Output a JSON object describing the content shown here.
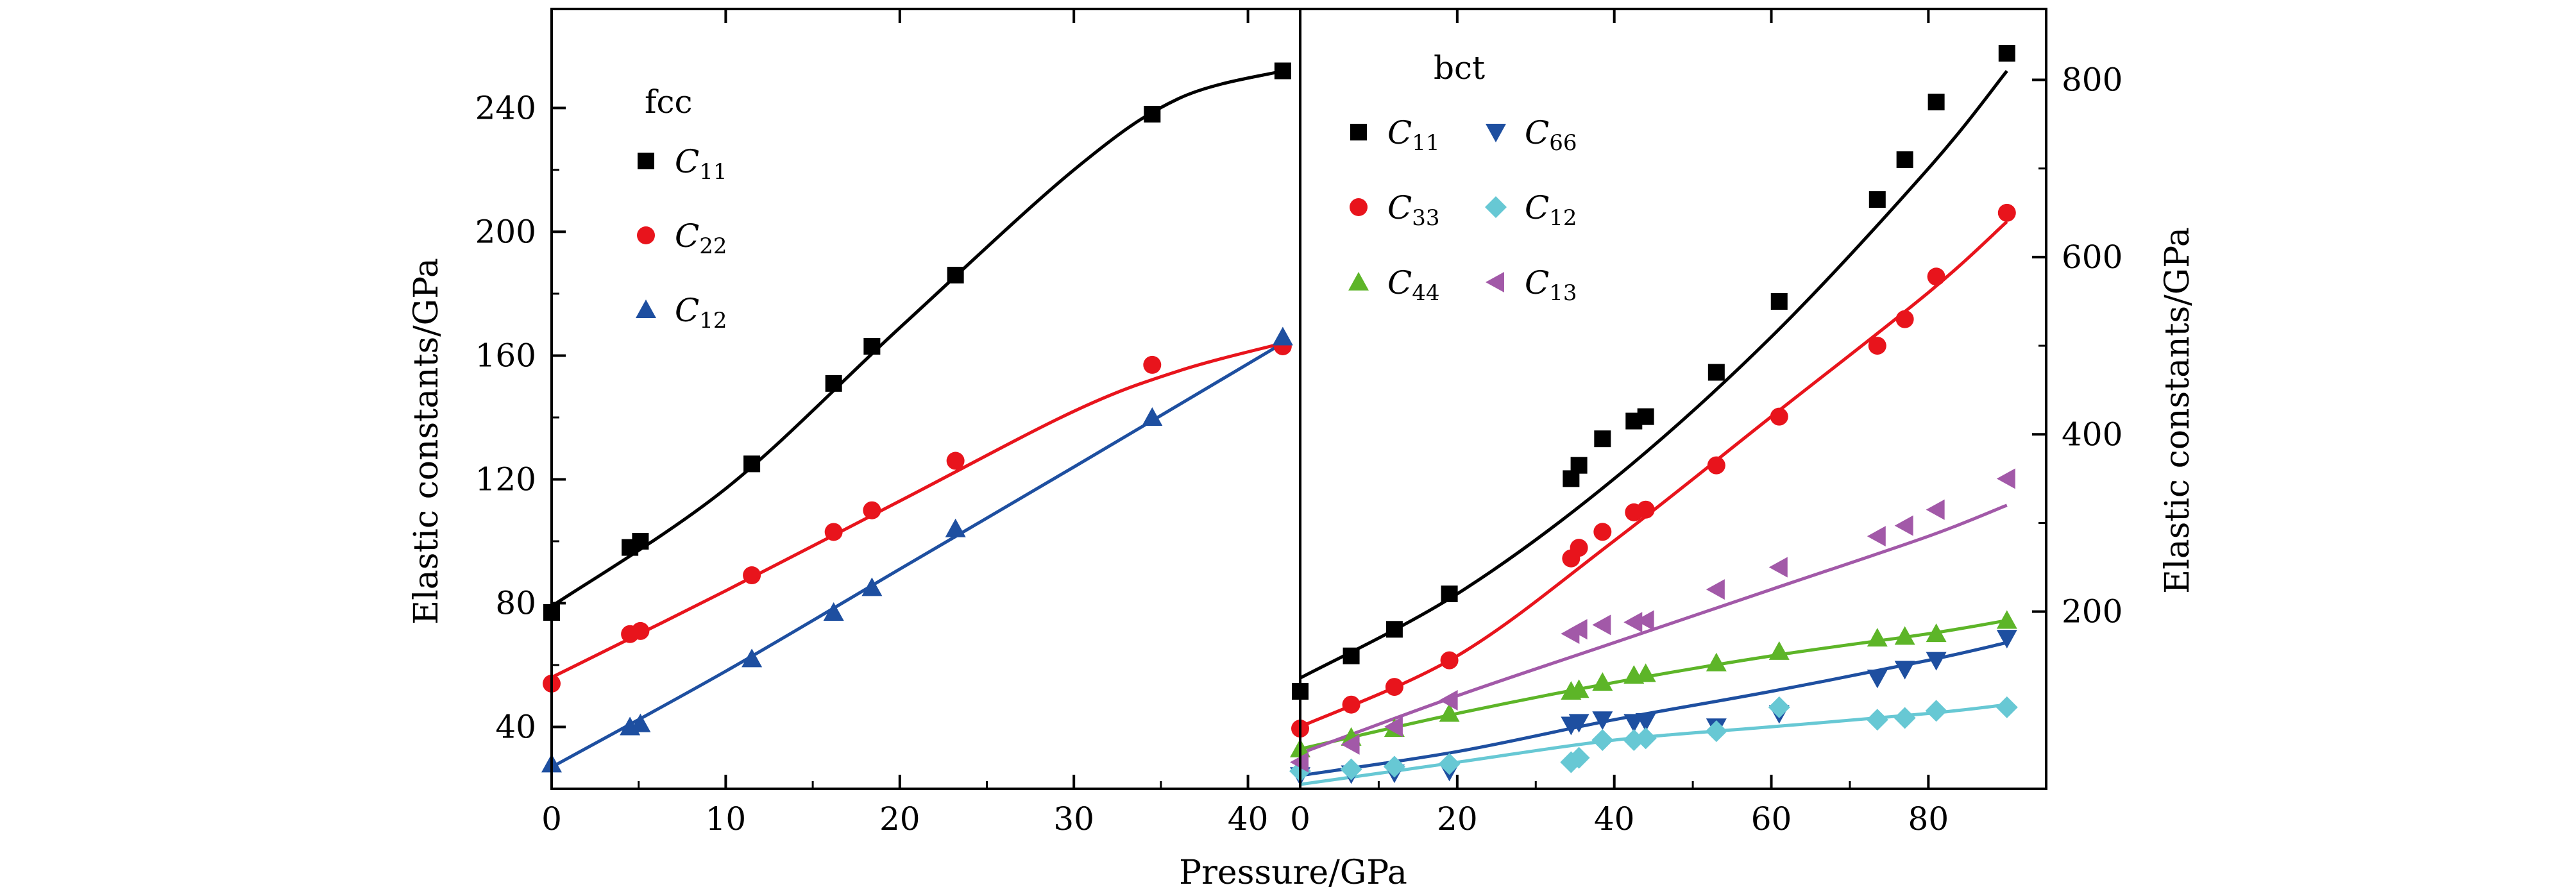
{
  "xlabel": "Pressure/GPa",
  "chart_data": [
    {
      "type": "scatter",
      "title": "fcc",
      "xlabel": "Pressure/GPa",
      "ylabel": "Elastic constants/GPa",
      "xlim": [
        0,
        43
      ],
      "ylim": [
        20,
        272
      ],
      "xticks": [
        0,
        10,
        20,
        30,
        40
      ],
      "yticks": [
        40,
        80,
        120,
        160,
        200,
        240
      ],
      "tick_labels_x": [
        "0",
        "10",
        "20",
        "30",
        "40"
      ],
      "tick_labels_y": [
        "40",
        "80",
        "120",
        "160",
        "200",
        "240"
      ],
      "legend": {
        "title": "fcc",
        "placement": "top-left"
      },
      "series": [
        {
          "name": "C11",
          "label_main": "C",
          "label_sub": "11",
          "marker": "square",
          "color": "#000000",
          "x": [
            0,
            4.5,
            5.1,
            11.5,
            16.2,
            18.4,
            23.2,
            34.5,
            42
          ],
          "y": [
            77,
            98,
            100,
            125,
            151,
            163,
            186,
            238,
            252
          ],
          "fit": [
            [
              0,
              79
            ],
            [
              10,
              117
            ],
            [
              20,
              169
            ],
            [
              30,
              220
            ],
            [
              36,
              243
            ],
            [
              42,
              252
            ]
          ]
        },
        {
          "name": "C22",
          "label_main": "C",
          "label_sub": "22",
          "marker": "circle",
          "color": "#e8141c",
          "x": [
            0,
            4.5,
            5.1,
            11.5,
            16.2,
            18.4,
            23.2,
            34.5,
            42
          ],
          "y": [
            54,
            70,
            71,
            89,
            103,
            110,
            126,
            157,
            163
          ],
          "fit": [
            [
              0,
              56
            ],
            [
              10,
              84
            ],
            [
              20,
              113
            ],
            [
              30,
              142
            ],
            [
              36,
              155
            ],
            [
              42,
              164
            ]
          ]
        },
        {
          "name": "C12",
          "label_main": "C",
          "label_sub": "12",
          "marker": "triangle-up",
          "color": "#1e4fa0",
          "x": [
            0,
            4.5,
            5.1,
            11.5,
            16.2,
            18.4,
            23.2,
            34.5,
            42
          ],
          "y": [
            28,
            40,
            41,
            62,
            77,
            85,
            104,
            140,
            166
          ],
          "fit": [
            [
              0,
              27
            ],
            [
              10,
              58
            ],
            [
              20,
              91
            ],
            [
              30,
              124
            ],
            [
              42,
              164
            ]
          ]
        }
      ]
    },
    {
      "type": "scatter",
      "title": "bct",
      "xlabel": "Pressure/GPa",
      "ylabel": "Elastic constants/GPa",
      "xlim": [
        0,
        95
      ],
      "ylim": [
        0,
        880
      ],
      "xticks": [
        0,
        20,
        40,
        60,
        80
      ],
      "yticks": [
        200,
        400,
        600,
        800
      ],
      "tick_labels_x": [
        "0",
        "20",
        "40",
        "60",
        "80"
      ],
      "tick_labels_y": [
        "200",
        "400",
        "600",
        "800"
      ],
      "legend": {
        "title": "bct",
        "placement": "top-left",
        "columns": 2
      },
      "series": [
        {
          "name": "C11",
          "label_main": "C",
          "label_sub": "11",
          "marker": "square",
          "color": "#000000",
          "x": [
            0,
            6.5,
            12,
            19,
            34.5,
            35.5,
            38.5,
            42.5,
            44,
            53,
            61,
            73.5,
            77,
            81,
            90
          ],
          "y": [
            110,
            150,
            180,
            220,
            350,
            365,
            395,
            415,
            420,
            470,
            550,
            665,
            710,
            775,
            830
          ],
          "fit": [
            [
              0,
              125
            ],
            [
              20,
              220
            ],
            [
              40,
              350
            ],
            [
              60,
              510
            ],
            [
              80,
              700
            ],
            [
              90,
              810
            ]
          ]
        },
        {
          "name": "C33",
          "label_main": "C",
          "label_sub": "33",
          "marker": "circle",
          "color": "#e8141c",
          "x": [
            0,
            6.5,
            12,
            19,
            34.5,
            35.5,
            38.5,
            42.5,
            44,
            53,
            61,
            73.5,
            77,
            81,
            90
          ],
          "y": [
            68,
            95,
            115,
            145,
            260,
            272,
            290,
            312,
            315,
            365,
            420,
            500,
            530,
            578,
            650
          ],
          "fit": [
            [
              0,
              70
            ],
            [
              20,
              150
            ],
            [
              40,
              280
            ],
            [
              60,
              420
            ],
            [
              80,
              560
            ],
            [
              90,
              640
            ]
          ]
        },
        {
          "name": "C44",
          "label_main": "C",
          "label_sub": "44",
          "marker": "triangle-up",
          "color": "#5db528",
          "x": [
            0,
            6.5,
            12,
            19,
            34.5,
            35.5,
            38.5,
            42.5,
            44,
            53,
            61,
            73.5,
            77,
            81,
            90
          ],
          "y": [
            45,
            58,
            68,
            85,
            110,
            112,
            120,
            128,
            130,
            142,
            155,
            170,
            172,
            175,
            190
          ],
          "fit": [
            [
              0,
              45
            ],
            [
              20,
              85
            ],
            [
              40,
              120
            ],
            [
              60,
              150
            ],
            [
              80,
              175
            ],
            [
              90,
              190
            ]
          ]
        },
        {
          "name": "C66",
          "label_main": "C",
          "label_sub": "66",
          "marker": "triangle-down",
          "color": "#1e4fa0",
          "x": [
            0,
            6.5,
            12,
            19,
            34.5,
            35.5,
            38.5,
            42.5,
            44,
            53,
            61,
            73.5,
            77,
            81,
            90
          ],
          "y": [
            15,
            17,
            18,
            20,
            72,
            75,
            78,
            75,
            76,
            70,
            85,
            125,
            135,
            145,
            170
          ],
          "fit": [
            [
              0,
              15
            ],
            [
              20,
              42
            ],
            [
              40,
              78
            ],
            [
              60,
              110
            ],
            [
              80,
              145
            ],
            [
              90,
              165
            ]
          ]
        },
        {
          "name": "C12",
          "label_main": "C",
          "label_sub": "12",
          "marker": "diamond",
          "color": "#67c8d4",
          "x": [
            0,
            6.5,
            12,
            19,
            34.5,
            35.5,
            38.5,
            42.5,
            44,
            53,
            61,
            73.5,
            77,
            81,
            90
          ],
          "y": [
            20,
            22,
            25,
            28,
            30,
            35,
            55,
            55,
            57,
            65,
            92,
            78,
            80,
            88,
            92
          ],
          "fit": [
            [
              0,
              5
            ],
            [
              20,
              30
            ],
            [
              40,
              55
            ],
            [
              60,
              70
            ],
            [
              80,
              85
            ],
            [
              90,
              95
            ]
          ]
        },
        {
          "name": "C13",
          "label_main": "C",
          "label_sub": "13",
          "marker": "triangle-left",
          "color": "#a259a8",
          "x": [
            0,
            6.5,
            12,
            19,
            34.5,
            35.5,
            38.5,
            42.5,
            44,
            53,
            61,
            73.5,
            77,
            81,
            90
          ],
          "y": [
            30,
            50,
            70,
            100,
            175,
            180,
            185,
            188,
            190,
            225,
            250,
            285,
            297,
            315,
            350
          ],
          "fit": [
            [
              0,
              40
            ],
            [
              20,
              105
            ],
            [
              40,
              165
            ],
            [
              60,
              225
            ],
            [
              80,
              285
            ],
            [
              90,
              320
            ]
          ]
        }
      ]
    }
  ]
}
